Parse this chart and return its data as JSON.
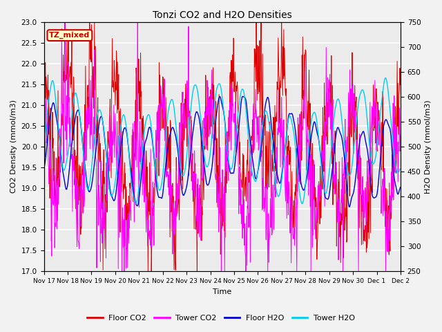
{
  "title": "Tonzi CO2 and H2O Densities",
  "xlabel": "Time",
  "ylabel_left": "CO2 Density (mmol/m3)",
  "ylabel_right": "H2O Density (mmol/m3)",
  "ylim_left": [
    17.0,
    23.0
  ],
  "ylim_right": [
    250,
    750
  ],
  "annotation_text": "TZ_mixed",
  "annotation_fg": "#cc0000",
  "annotation_bg": "#ffffcc",
  "annotation_edge": "#cc0000",
  "colors": {
    "floor_co2": "#dd0000",
    "tower_co2": "#ff00ff",
    "floor_h2o": "#0000cc",
    "tower_h2o": "#00ccee"
  },
  "legend_labels": [
    "Floor CO2",
    "Tower CO2",
    "Floor H2O",
    "Tower H2O"
  ],
  "x_tick_labels": [
    "Nov 17",
    "Nov 18",
    "Nov 19",
    "Nov 20",
    "Nov 21",
    "Nov 22",
    "Nov 23",
    "Nov 24",
    "Nov 25",
    "Nov 26",
    "Nov 27",
    "Nov 28",
    "Nov 29",
    "Nov 30",
    "Dec 1",
    "Dec 2"
  ],
  "n_points": 960,
  "background_color": "#ebebeb",
  "grid_color": "#ffffff",
  "fig_facecolor": "#f2f2f2"
}
